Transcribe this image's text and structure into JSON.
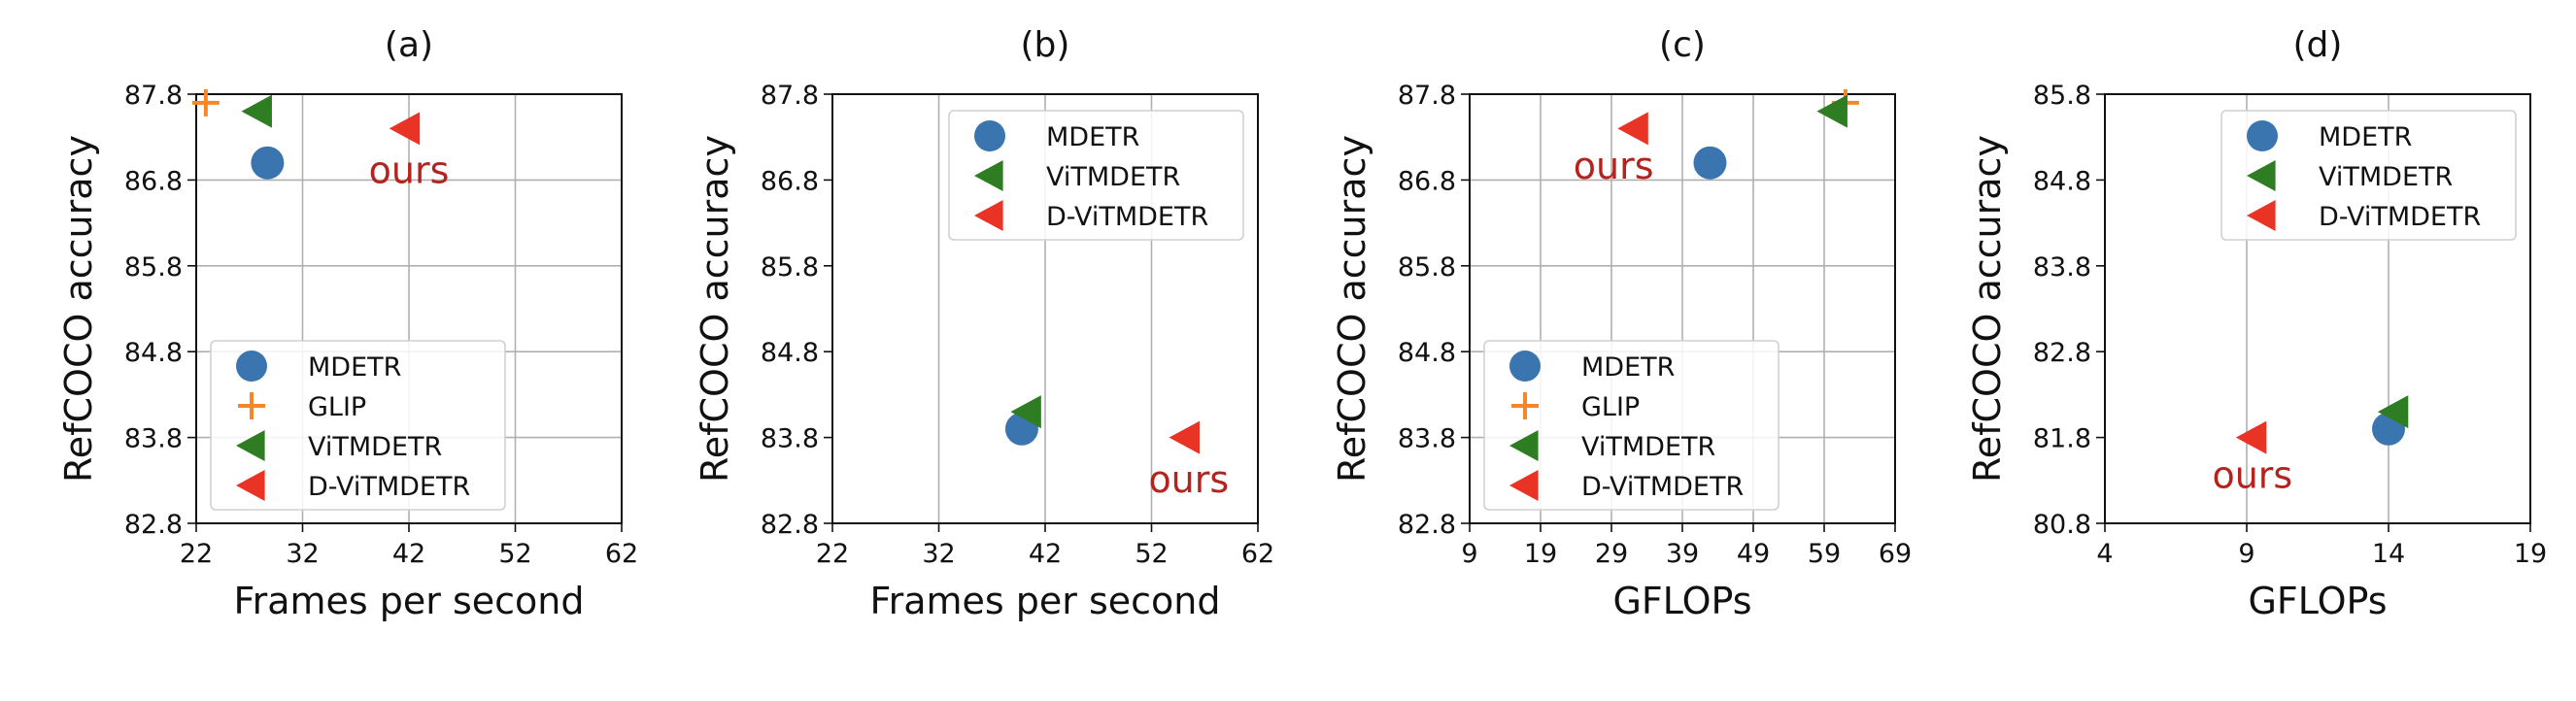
{
  "colors": {
    "MDETR": "#3a75b0",
    "GLIP": "#f5862a",
    "ViTMDETR": "#2f7d23",
    "D-ViTMDETR": "#e83325",
    "ours": "#b5231f"
  },
  "chart_data": [
    {
      "type": "scatter",
      "title": "(a)",
      "xlabel": "Frames per second",
      "ylabel": "RefCOCO accuracy",
      "xlim": [
        22,
        62
      ],
      "ylim": [
        82.8,
        87.8
      ],
      "xticks": [
        "22",
        "32",
        "42",
        "52",
        "62"
      ],
      "yticks": [
        "82.8",
        "83.8",
        "84.8",
        "85.8",
        "86.8",
        "87.8"
      ],
      "grid": "both",
      "legend_position": "lower-left",
      "series": [
        {
          "name": "MDETR",
          "marker": "circle",
          "x": 28.7,
          "y": 87.0
        },
        {
          "name": "GLIP",
          "marker": "plus",
          "x": 22.9,
          "y": 87.7
        },
        {
          "name": "ViTMDETR",
          "marker": "triangle-left",
          "x": 27.8,
          "y": 87.6
        },
        {
          "name": "D-ViTMDETR",
          "marker": "triangle-left",
          "x": 41.7,
          "y": 87.4
        }
      ],
      "annotation": {
        "text": "ours",
        "x": 42,
        "y": 86.9
      }
    },
    {
      "type": "scatter",
      "title": "(b)",
      "xlabel": "Frames per second",
      "ylabel": "RefCOCO accuracy",
      "xlim": [
        22,
        62
      ],
      "ylim": [
        82.8,
        87.8
      ],
      "xticks": [
        "22",
        "32",
        "42",
        "52",
        "62"
      ],
      "yticks": [
        "82.8",
        "83.8",
        "84.8",
        "85.8",
        "86.8",
        "87.8"
      ],
      "grid": "x",
      "legend_position": "top-right",
      "series": [
        {
          "name": "MDETR",
          "marker": "circle",
          "x": 39.8,
          "y": 83.9
        },
        {
          "name": "ViTMDETR",
          "marker": "triangle-left",
          "x": 40.3,
          "y": 84.1
        },
        {
          "name": "D-ViTMDETR",
          "marker": "triangle-left",
          "x": 55.2,
          "y": 83.8
        }
      ],
      "annotation": {
        "text": "ours",
        "x": 55.5,
        "y": 83.3
      }
    },
    {
      "type": "scatter",
      "title": "(c)",
      "xlabel": "GFLOPs",
      "ylabel": "RefCOCO accuracy",
      "xlim": [
        9,
        69
      ],
      "ylim": [
        82.8,
        87.8
      ],
      "xticks": [
        "9",
        "19",
        "29",
        "39",
        "49",
        "59",
        "69"
      ],
      "yticks": [
        "82.8",
        "83.8",
        "84.8",
        "85.8",
        "86.8",
        "87.8"
      ],
      "grid": "both",
      "legend_position": "lower-left",
      "series": [
        {
          "name": "MDETR",
          "marker": "circle",
          "x": 42.9,
          "y": 87.0
        },
        {
          "name": "GLIP",
          "marker": "plus",
          "x": 62.0,
          "y": 87.7
        },
        {
          "name": "ViTMDETR",
          "marker": "triangle-left",
          "x": 60.3,
          "y": 87.6
        },
        {
          "name": "D-ViTMDETR",
          "marker": "triangle-left",
          "x": 32.2,
          "y": 87.4
        }
      ],
      "annotation": {
        "text": "ours",
        "x": 29.3,
        "y": 86.95
      }
    },
    {
      "type": "scatter",
      "title": "(d)",
      "xlabel": "GFLOPs",
      "ylabel": "RefCOCO accuracy",
      "xlim": [
        4,
        19
      ],
      "ylim": [
        80.8,
        85.8
      ],
      "xticks": [
        "4",
        "9",
        "14",
        "19"
      ],
      "yticks": [
        "80.8",
        "81.8",
        "82.8",
        "83.8",
        "84.8",
        "85.8"
      ],
      "grid": "x",
      "legend_position": "top-right",
      "series": [
        {
          "name": "MDETR",
          "marker": "circle",
          "x": 14.0,
          "y": 81.9
        },
        {
          "name": "ViTMDETR",
          "marker": "triangle-left",
          "x": 14.2,
          "y": 82.1
        },
        {
          "name": "D-ViTMDETR",
          "marker": "triangle-left",
          "x": 9.2,
          "y": 81.8
        }
      ],
      "annotation": {
        "text": "ours",
        "x": 9.2,
        "y": 81.35
      }
    }
  ]
}
